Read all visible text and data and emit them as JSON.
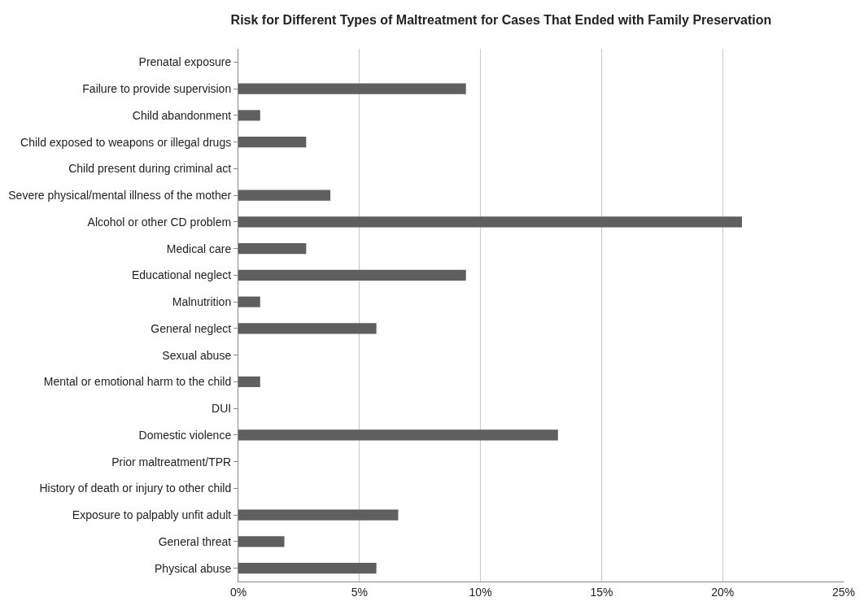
{
  "chart_data": {
    "type": "bar",
    "orientation": "horizontal",
    "title": "Risk for Different Types of Maltreatment for Cases That Ended with Family Preservation",
    "categories": [
      "Prenatal exposure",
      "Failure to provide supervision",
      "Child abandonment",
      "Child exposed to weapons or illegal drugs",
      "Child present during criminal act",
      "Severe physical/mental illness of the mother",
      "Alcohol or other CD problem",
      "Medical care",
      "Educational neglect",
      "Malnutrition",
      "General neglect",
      "Sexual abuse",
      "Mental or emotional harm to the child",
      "DUI",
      "Domestic violence",
      "Prior maltreatment/TPR",
      "History of death or injury to other child",
      "Exposure to palpably unfit adult",
      "General threat",
      "Physical abuse"
    ],
    "values": [
      0,
      9.4,
      0.9,
      2.8,
      0,
      3.8,
      20.8,
      2.8,
      9.4,
      0.9,
      5.7,
      0,
      0.9,
      0,
      13.2,
      0,
      0,
      6.6,
      1.9,
      5.7
    ],
    "color": "#5f5f5f",
    "xlim": [
      0,
      25
    ],
    "xticks": [
      {
        "value": 0,
        "label": "0%"
      },
      {
        "value": 5,
        "label": "5%"
      },
      {
        "value": 10,
        "label": "10%"
      },
      {
        "value": 15,
        "label": "15%"
      },
      {
        "value": 20,
        "label": "20%"
      },
      {
        "value": 25,
        "label": "25%"
      }
    ],
    "grid": "x"
  }
}
